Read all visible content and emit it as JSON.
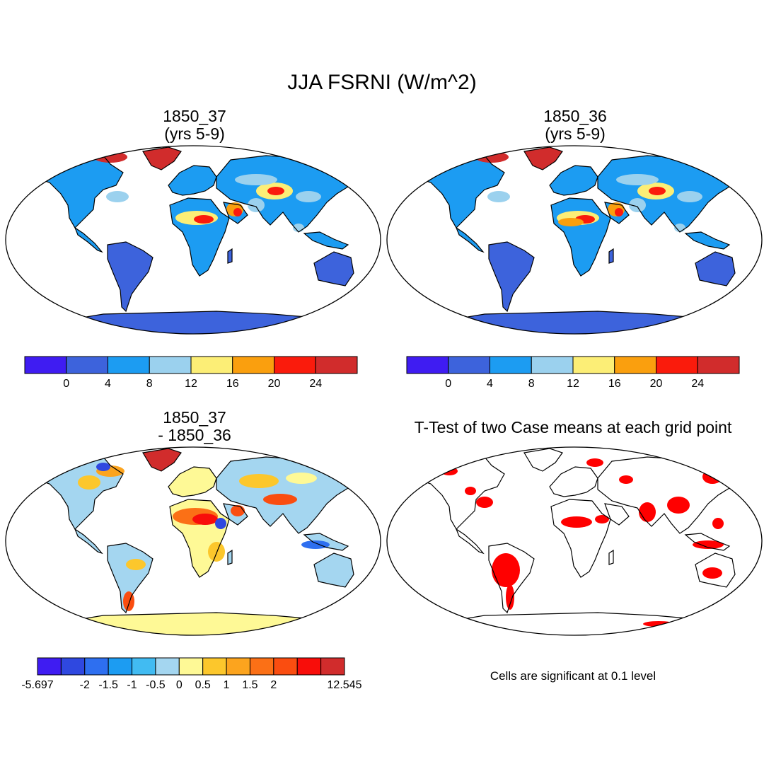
{
  "main_title": "JJA FSRNI (W/m^2)",
  "panels": {
    "top_left": {
      "title_line1": "1850_37",
      "title_line2": "(yrs 5-9)"
    },
    "top_right": {
      "title_line1": "1850_36",
      "title_line2": "(yrs 5-9)"
    },
    "bottom_left": {
      "title_line1": "1850_37",
      "title_line2": "- 1850_36"
    },
    "bottom_right": {
      "title": "T-Test of two Case means at each grid point",
      "note": "Cells are significant at 0.1 level"
    }
  },
  "colorbars": {
    "absolute": {
      "colors": [
        "#3f1cf2",
        "#3d63dc",
        "#1c9cf2",
        "#9bd1ee",
        "#fcee76",
        "#fa9f0e",
        "#fa1b0c",
        "#d12c2c"
      ],
      "labels": [
        "0",
        "4",
        "8",
        "12",
        "16",
        "20",
        "24"
      ]
    },
    "difference": {
      "colors": [
        "#3f1cf2",
        "#2f48e0",
        "#2e6ff0",
        "#1c9cf2",
        "#41bbf2",
        "#a4d6f0",
        "#fef996",
        "#fcc72c",
        "#fca41e",
        "#fb7016",
        "#fa4d10",
        "#f80d0a",
        "#d12c2c"
      ],
      "labels": [
        "-5.697",
        "-2",
        "-1.5",
        "-1",
        "-0.5",
        "0",
        "0.5",
        "1",
        "1.5",
        "2",
        "12.545"
      ],
      "label_positions": [
        0,
        2,
        3,
        4,
        5,
        6,
        7,
        8,
        9,
        10,
        13
      ]
    }
  },
  "map_colors": {
    "ocean": "#ffffff",
    "outline": "#000000",
    "significant": "#ff0000"
  }
}
